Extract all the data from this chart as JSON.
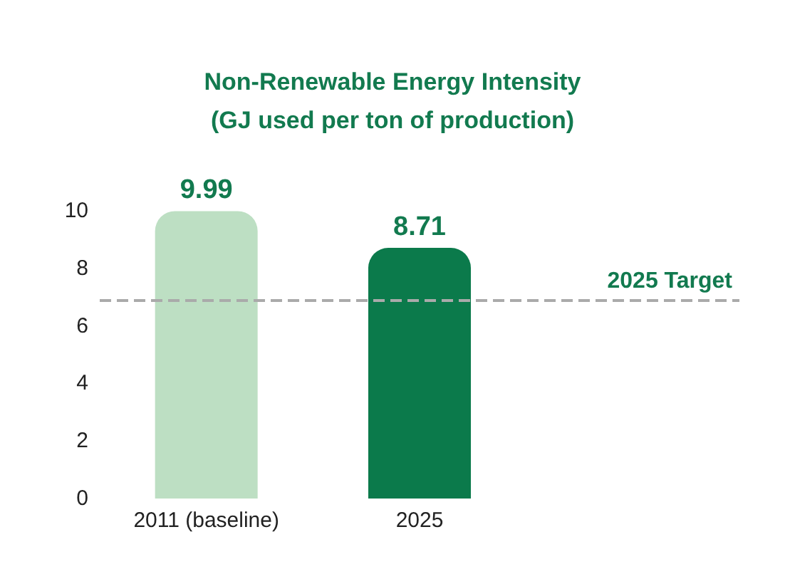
{
  "chart_data": {
    "type": "bar",
    "title": "Non-Renewable Energy Intensity",
    "subtitle": "(GJ used per ton of production)",
    "categories": [
      "2011 (baseline)",
      "2025"
    ],
    "values": [
      9.99,
      8.71
    ],
    "colors": [
      "#bddfc3",
      "#0b7a4b"
    ],
    "ylim": [
      0,
      10
    ],
    "yticks": [
      0,
      2,
      4,
      6,
      8,
      10
    ],
    "grid": false,
    "data_labels": true,
    "ref_lines": [
      {
        "axis": "y",
        "value": 6.9,
        "label": "2025 Target",
        "color": "#aaaaaa",
        "line_style": "dashed"
      }
    ]
  }
}
